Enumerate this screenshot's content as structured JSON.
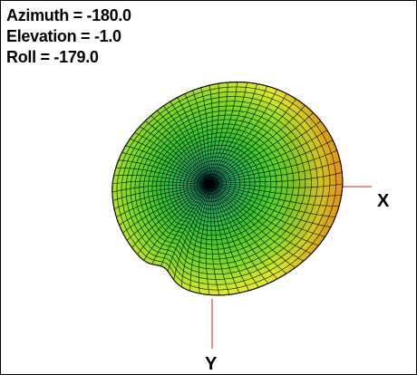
{
  "view": {
    "azimuth_text": "Azimuth = -180.0",
    "elevation_text": "Elevation = -1.0",
    "roll_text": "Roll = -179.0"
  },
  "axes": {
    "x_label": "X",
    "y_label": "Y",
    "line_color": "#cc2222"
  },
  "colors": {
    "center": "#1aa0a0",
    "mid": "#33cc22",
    "outer": "#eeee22",
    "edge": "#f08a10",
    "grid": "#000000"
  }
}
